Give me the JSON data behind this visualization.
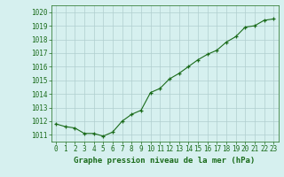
{
  "x": [
    0,
    1,
    2,
    3,
    4,
    5,
    6,
    7,
    8,
    9,
    10,
    11,
    12,
    13,
    14,
    15,
    16,
    17,
    18,
    19,
    20,
    21,
    22,
    23
  ],
  "y": [
    1011.8,
    1011.6,
    1011.5,
    1011.1,
    1011.1,
    1010.9,
    1011.2,
    1012.0,
    1012.5,
    1012.8,
    1014.1,
    1014.4,
    1015.1,
    1015.5,
    1016.0,
    1016.5,
    1016.9,
    1017.2,
    1017.8,
    1018.2,
    1018.9,
    1019.0,
    1019.4,
    1019.5
  ],
  "line_color": "#1a6b1a",
  "marker_color": "#1a6b1a",
  "bg_color": "#d6f0ef",
  "grid_color": "#b0cece",
  "title": "Graphe pression niveau de la mer (hPa)",
  "ylim": [
    1010.5,
    1020.5
  ],
  "xlim": [
    -0.5,
    23.5
  ],
  "yticks": [
    1011,
    1012,
    1013,
    1014,
    1015,
    1016,
    1017,
    1018,
    1019,
    1020
  ],
  "xticks": [
    0,
    1,
    2,
    3,
    4,
    5,
    6,
    7,
    8,
    9,
    10,
    11,
    12,
    13,
    14,
    15,
    16,
    17,
    18,
    19,
    20,
    21,
    22,
    23
  ],
  "title_fontsize": 6.5,
  "tick_fontsize": 5.5,
  "linewidth": 0.8,
  "markersize": 3.0
}
